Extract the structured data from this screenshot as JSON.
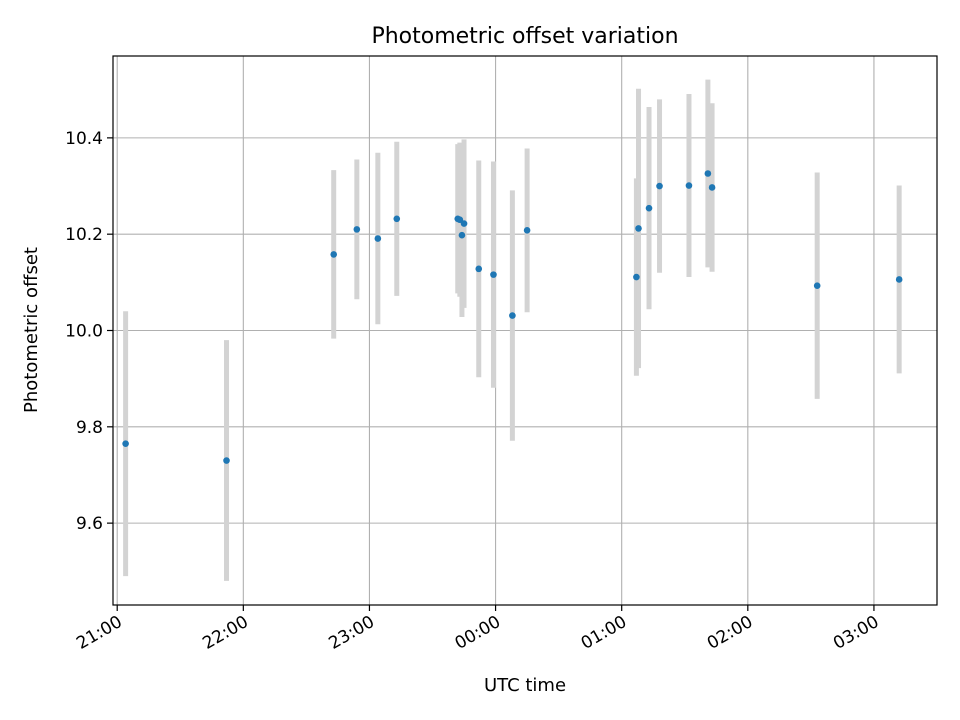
{
  "colors": {
    "point": "#1f77b4",
    "errorbar": "#d3d3d3",
    "grid": "#b0b0b0",
    "frame": "#000000"
  },
  "chart_data": {
    "type": "scatter",
    "title": "Photometric offset variation",
    "xlabel": "UTC time",
    "ylabel": "Photometric offset",
    "grid": true,
    "xlim": [
      "20:58",
      "03:30"
    ],
    "ylim": [
      9.43,
      10.57
    ],
    "x_ticks": [
      "21:00",
      "22:00",
      "23:00",
      "00:00",
      "01:00",
      "02:00",
      "03:00"
    ],
    "y_ticks": [
      9.6,
      9.8,
      10.0,
      10.2,
      10.4
    ],
    "error_bars": "symmetric y error",
    "points": [
      {
        "time": "21:04",
        "y": 9.765,
        "err": 0.275
      },
      {
        "time": "21:52",
        "y": 9.73,
        "err": 0.25
      },
      {
        "time": "22:43",
        "y": 10.158,
        "err": 0.175
      },
      {
        "time": "22:54",
        "y": 10.21,
        "err": 0.145
      },
      {
        "time": "23:04",
        "y": 10.191,
        "err": 0.178
      },
      {
        "time": "23:13",
        "y": 10.232,
        "err": 0.16
      },
      {
        "time": "23:42",
        "y": 10.232,
        "err": 0.155
      },
      {
        "time": "23:43",
        "y": 10.23,
        "err": 0.16
      },
      {
        "time": "23:44",
        "y": 10.198,
        "err": 0.17
      },
      {
        "time": "23:45",
        "y": 10.222,
        "err": 0.175
      },
      {
        "time": "23:52",
        "y": 10.128,
        "err": 0.225
      },
      {
        "time": "23:59",
        "y": 10.116,
        "err": 0.235
      },
      {
        "time": "00:08",
        "y": 10.031,
        "err": 0.26
      },
      {
        "time": "00:15",
        "y": 10.208,
        "err": 0.17
      },
      {
        "time": "01:07",
        "y": 10.111,
        "err": 0.205
      },
      {
        "time": "01:08",
        "y": 10.212,
        "err": 0.29
      },
      {
        "time": "01:13",
        "y": 10.254,
        "err": 0.21
      },
      {
        "time": "01:18",
        "y": 10.3,
        "err": 0.18
      },
      {
        "time": "01:32",
        "y": 10.301,
        "err": 0.19
      },
      {
        "time": "01:41",
        "y": 10.326,
        "err": 0.195
      },
      {
        "time": "01:43",
        "y": 10.297,
        "err": 0.175
      },
      {
        "time": "02:33",
        "y": 10.093,
        "err": 0.235
      },
      {
        "time": "03:12",
        "y": 10.106,
        "err": 0.195
      }
    ]
  }
}
